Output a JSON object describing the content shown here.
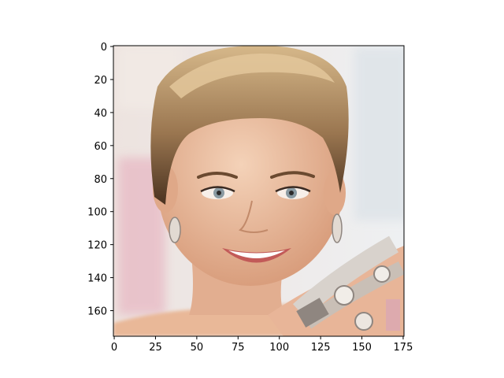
{
  "figure": {
    "image": {
      "description_icon": "portrait-photo-icon",
      "colors": {
        "background_left": "#ede3df",
        "background_right": "#eef0f2",
        "pink_blur": "#e7b6c2",
        "skin": "#efc6a8",
        "skin_shadow": "#d99e7d",
        "hair_dark": "#4a3220",
        "hair_light": "#c8a67a",
        "eye": "#8a9aa2",
        "lip": "#c25a58",
        "teeth": "#ffffff",
        "jewelry": "#d8d2cc",
        "jewelry_dark": "#8f8680"
      }
    },
    "x_axis": {
      "ticks": [
        "0",
        "25",
        "50",
        "75",
        "100",
        "125",
        "150",
        "175"
      ],
      "tick_values": [
        0,
        25,
        50,
        75,
        100,
        125,
        150,
        175
      ],
      "range": [
        -0.5,
        175.5
      ]
    },
    "y_axis": {
      "ticks": [
        "0",
        "20",
        "40",
        "60",
        "80",
        "100",
        "120",
        "140",
        "160"
      ],
      "tick_values": [
        0,
        20,
        40,
        60,
        80,
        100,
        120,
        140,
        160
      ],
      "range": [
        175.5,
        -0.5
      ]
    }
  }
}
